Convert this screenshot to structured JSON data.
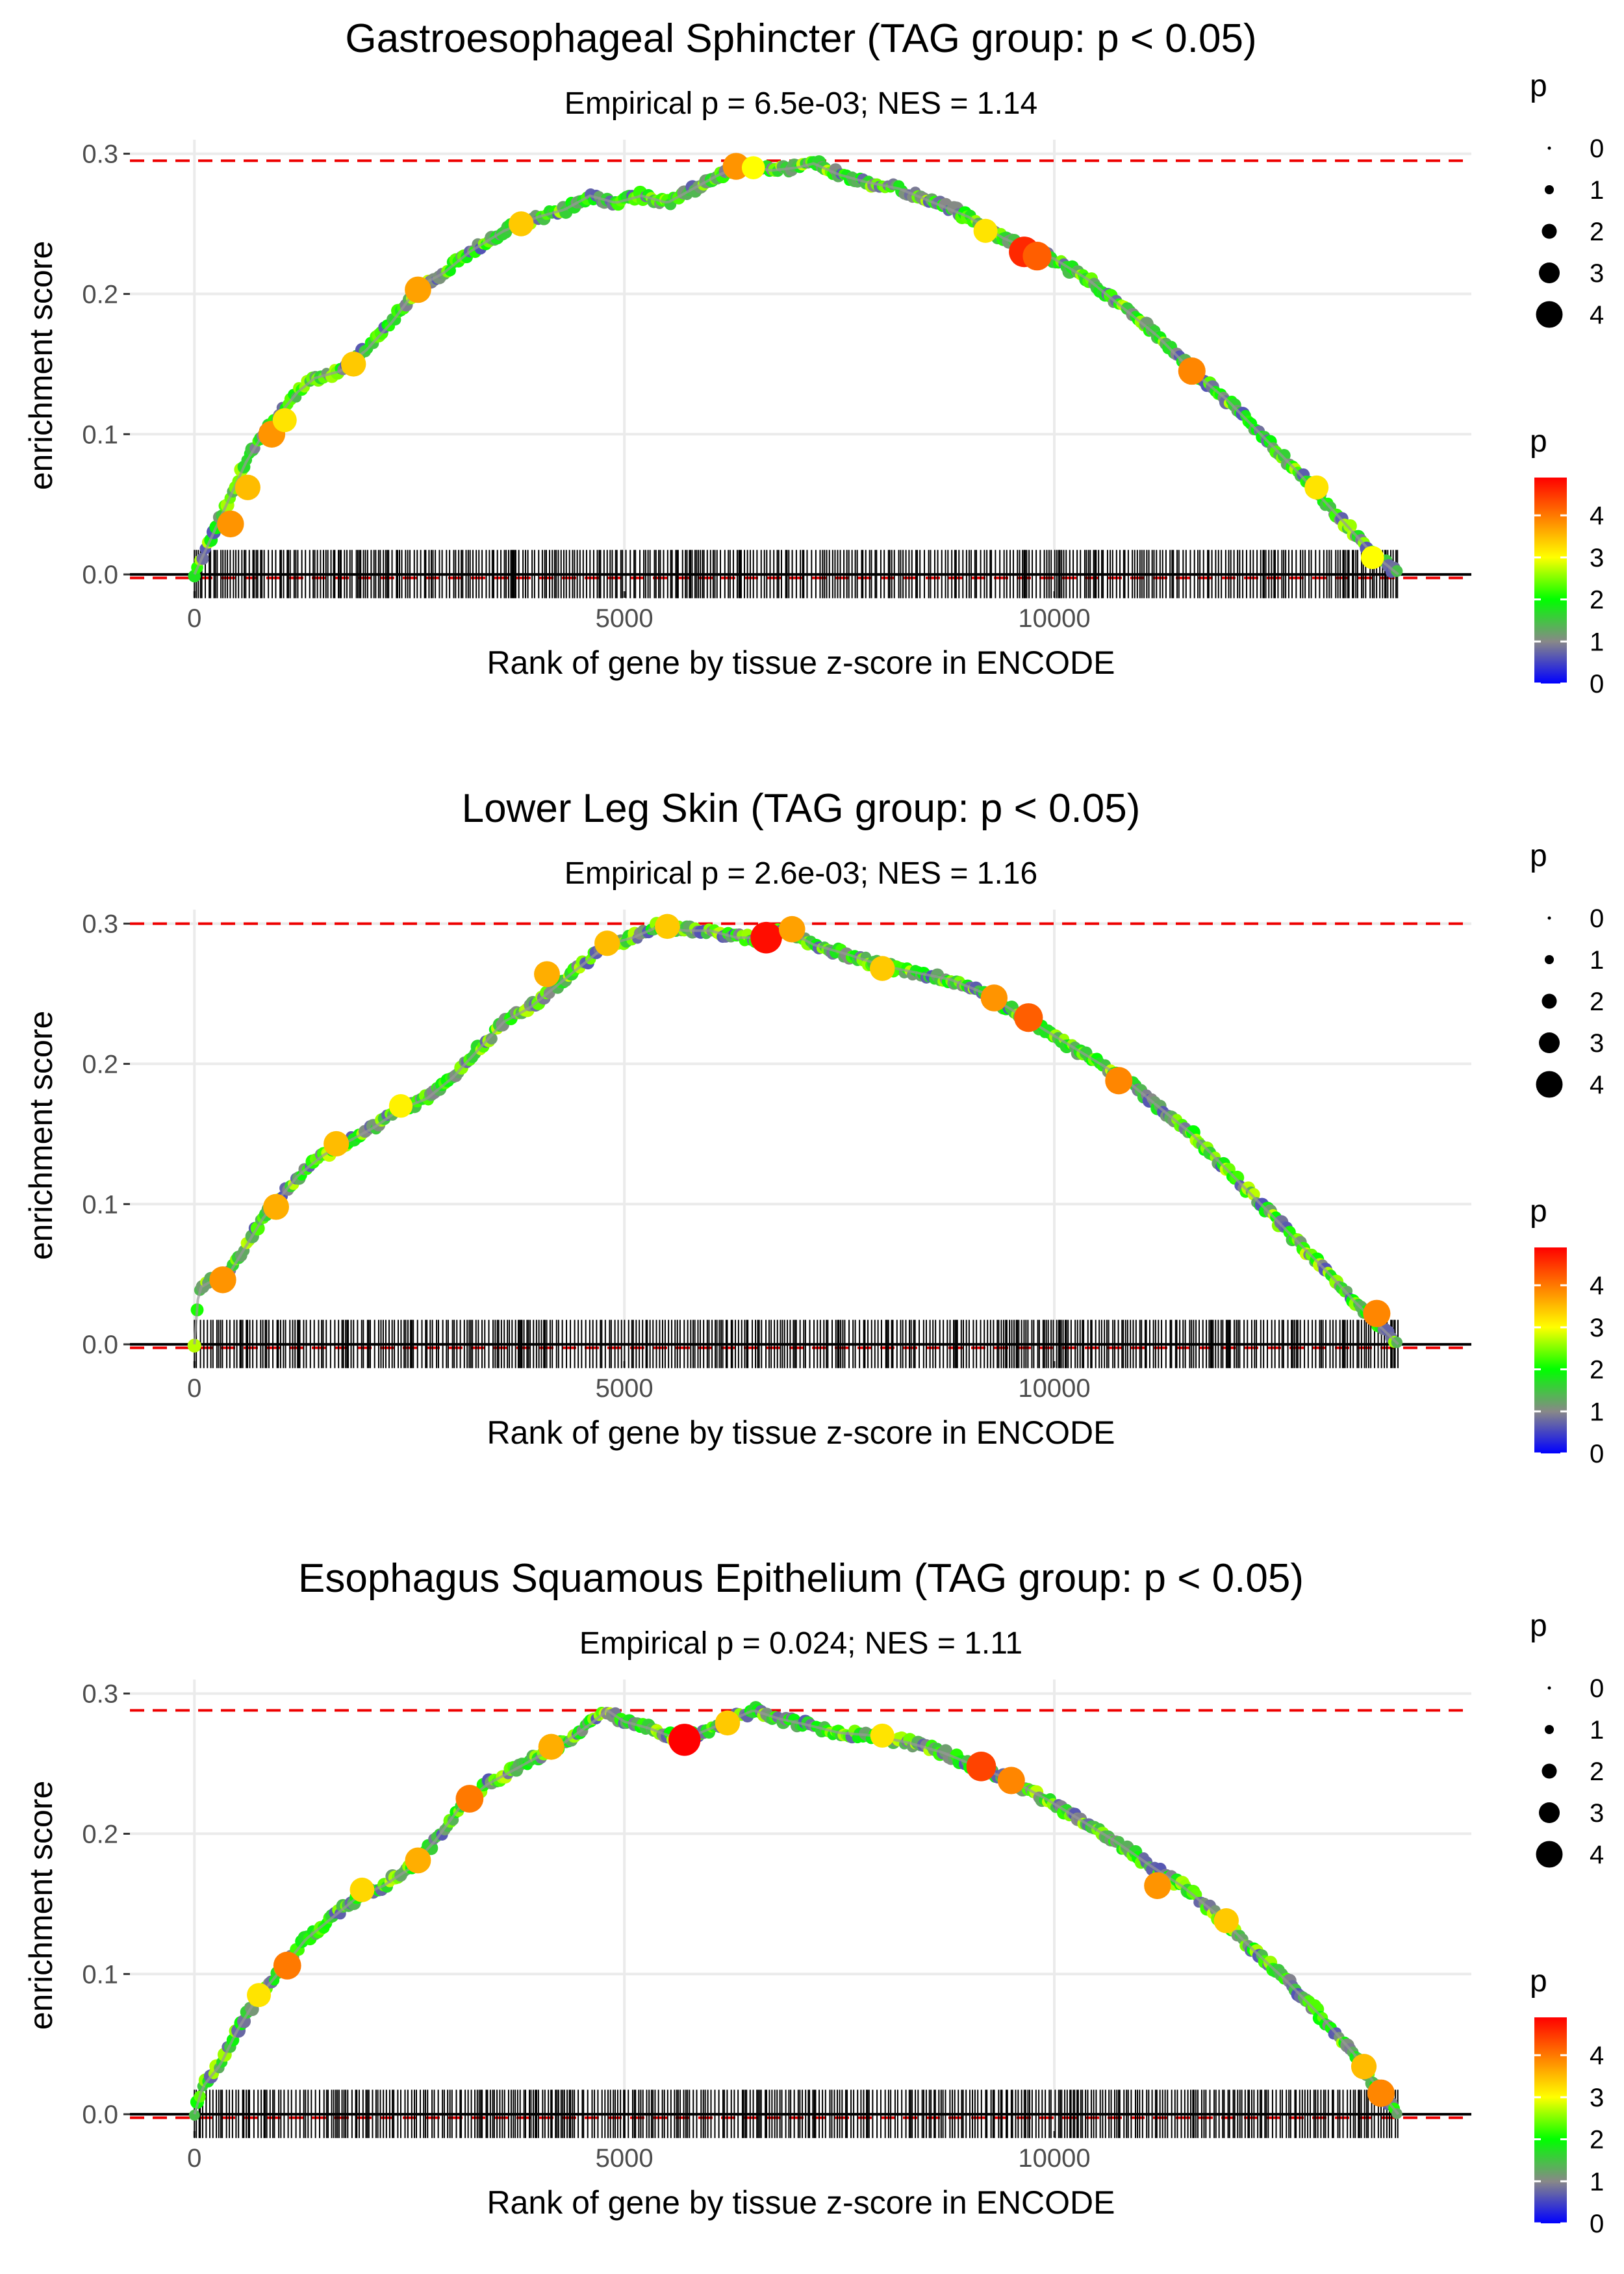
{
  "chart_data": [
    {
      "type": "line",
      "title": "Gastroesophageal Sphincter (TAG group: p < 0.05)",
      "subtitle": "Empirical p = 6.5e-03; NES = 1.14",
      "xlabel": "Rank of gene by tissue z-score in ENCODE",
      "ylabel": "enrichment score",
      "xlim": [
        -750,
        14850
      ],
      "ylim": [
        -0.012,
        0.31
      ],
      "x_ticks": [
        0,
        5000,
        10000
      ],
      "x_tick_labels": [
        "0",
        "5000",
        "10000"
      ],
      "y_ticks": [
        0,
        0.1,
        0.2,
        0.3
      ],
      "y_tick_labels": [
        "0.0",
        "0.1",
        "0.2",
        "0.3"
      ],
      "max_es": 0.295,
      "n_genes": 14000,
      "curve": {
        "x": [
          0,
          150,
          300,
          450,
          600,
          800,
          1000,
          1200,
          1400,
          1700,
          2000,
          2300,
          2600,
          2900,
          3200,
          3600,
          4000,
          4300,
          4600,
          4900,
          5200,
          5500,
          5800,
          6100,
          6400,
          6700,
          7000,
          7200,
          7500,
          7800,
          8200,
          8600,
          9000,
          9400,
          9700,
          10000,
          10400,
          10800,
          11200,
          11600,
          12000,
          12400,
          12800,
          13100,
          13400,
          13700,
          13900,
          14000
        ],
        "y": [
          0.0,
          0.02,
          0.04,
          0.06,
          0.08,
          0.1,
          0.115,
          0.13,
          0.14,
          0.145,
          0.16,
          0.18,
          0.205,
          0.215,
          0.23,
          0.245,
          0.255,
          0.26,
          0.27,
          0.265,
          0.27,
          0.265,
          0.275,
          0.285,
          0.292,
          0.288,
          0.29,
          0.293,
          0.285,
          0.28,
          0.275,
          0.265,
          0.255,
          0.24,
          0.232,
          0.225,
          0.21,
          0.19,
          0.17,
          0.145,
          0.125,
          0.1,
          0.075,
          0.055,
          0.035,
          0.015,
          0.005,
          0.0
        ]
      },
      "highlight_points": [
        {
          "x": 420,
          "y": 0.036,
          "p": 3.8
        },
        {
          "x": 620,
          "y": 0.062,
          "p": 3.5
        },
        {
          "x": 900,
          "y": 0.1,
          "p": 3.8
        },
        {
          "x": 1050,
          "y": 0.11,
          "p": 3.2
        },
        {
          "x": 1850,
          "y": 0.15,
          "p": 3.4
        },
        {
          "x": 2600,
          "y": 0.203,
          "p": 3.7
        },
        {
          "x": 3800,
          "y": 0.25,
          "p": 3.4
        },
        {
          "x": 6300,
          "y": 0.291,
          "p": 3.8
        },
        {
          "x": 6500,
          "y": 0.29,
          "p": 3.0
        },
        {
          "x": 9200,
          "y": 0.245,
          "p": 3.2
        },
        {
          "x": 9650,
          "y": 0.23,
          "p": 4.6
        },
        {
          "x": 9800,
          "y": 0.227,
          "p": 4.2
        },
        {
          "x": 11600,
          "y": 0.145,
          "p": 3.9
        },
        {
          "x": 13050,
          "y": 0.062,
          "p": 3.2
        },
        {
          "x": 13700,
          "y": 0.012,
          "p": 3.0
        }
      ],
      "tick_seed": 11
    },
    {
      "type": "line",
      "title": "Lower Leg Skin (TAG group: p < 0.05)",
      "subtitle": "Empirical p = 2.6e-03; NES = 1.16",
      "xlabel": "Rank of gene by tissue z-score in ENCODE",
      "ylabel": "enrichment score",
      "xlim": [
        -750,
        14850
      ],
      "ylim": [
        -0.012,
        0.31
      ],
      "x_ticks": [
        0,
        5000,
        10000
      ],
      "x_tick_labels": [
        "0",
        "5000",
        "10000"
      ],
      "y_ticks": [
        0,
        0.1,
        0.2,
        0.3
      ],
      "y_tick_labels": [
        "0.0",
        "0.1",
        "0.2",
        "0.3"
      ],
      "max_es": 0.3,
      "n_genes": 14000,
      "curve": {
        "x": [
          0,
          50,
          200,
          400,
          600,
          800,
          1000,
          1200,
          1500,
          1800,
          2100,
          2400,
          2700,
          3000,
          3300,
          3600,
          3900,
          4200,
          4500,
          4800,
          5100,
          5400,
          5700,
          6000,
          6300,
          6600,
          6900,
          7200,
          7600,
          8000,
          8400,
          8800,
          9200,
          9600,
          10000,
          10400,
          10800,
          11200,
          11600,
          12000,
          12400,
          12800,
          13200,
          13500,
          13800,
          14000
        ],
        "y": [
          0.0,
          0.04,
          0.045,
          0.05,
          0.07,
          0.09,
          0.105,
          0.12,
          0.135,
          0.145,
          0.155,
          0.168,
          0.175,
          0.19,
          0.21,
          0.23,
          0.24,
          0.255,
          0.27,
          0.285,
          0.29,
          0.298,
          0.295,
          0.295,
          0.29,
          0.29,
          0.295,
          0.285,
          0.278,
          0.27,
          0.265,
          0.26,
          0.25,
          0.235,
          0.22,
          0.205,
          0.19,
          0.17,
          0.15,
          0.125,
          0.1,
          0.075,
          0.05,
          0.03,
          0.012,
          0.0
        ]
      },
      "highlight_points": [
        {
          "x": 330,
          "y": 0.046,
          "p": 3.8
        },
        {
          "x": 950,
          "y": 0.098,
          "p": 3.6
        },
        {
          "x": 1650,
          "y": 0.143,
          "p": 3.5
        },
        {
          "x": 2400,
          "y": 0.17,
          "p": 3.1
        },
        {
          "x": 4100,
          "y": 0.264,
          "p": 3.6
        },
        {
          "x": 4800,
          "y": 0.286,
          "p": 3.5
        },
        {
          "x": 5500,
          "y": 0.298,
          "p": 3.4
        },
        {
          "x": 6650,
          "y": 0.29,
          "p": 4.8
        },
        {
          "x": 6950,
          "y": 0.296,
          "p": 3.7
        },
        {
          "x": 8000,
          "y": 0.268,
          "p": 3.4
        },
        {
          "x": 9300,
          "y": 0.247,
          "p": 3.8
        },
        {
          "x": 9700,
          "y": 0.233,
          "p": 4.2
        },
        {
          "x": 10750,
          "y": 0.188,
          "p": 3.9
        },
        {
          "x": 13750,
          "y": 0.022,
          "p": 3.9
        }
      ],
      "tick_seed": 29
    },
    {
      "type": "line",
      "title": "Esophagus Squamous Epithelium (TAG group: p < 0.05)",
      "subtitle": "Empirical p = 0.024; NES = 1.11",
      "xlabel": "Rank of gene by tissue z-score in ENCODE",
      "ylabel": "enrichment score",
      "xlim": [
        -750,
        14850
      ],
      "ylim": [
        -0.012,
        0.31
      ],
      "x_ticks": [
        0,
        5000,
        10000
      ],
      "x_tick_labels": [
        "0",
        "5000",
        "10000"
      ],
      "y_ticks": [
        0,
        0.1,
        0.2,
        0.3
      ],
      "y_tick_labels": [
        "0.0",
        "0.1",
        "0.2",
        "0.3"
      ],
      "max_es": 0.288,
      "n_genes": 14000,
      "curve": {
        "x": [
          0,
          100,
          300,
          500,
          700,
          900,
          1100,
          1300,
          1600,
          1900,
          2200,
          2500,
          2800,
          3100,
          3400,
          3700,
          4000,
          4300,
          4600,
          4800,
          5000,
          5300,
          5600,
          5800,
          6000,
          6200,
          6500,
          6800,
          7100,
          7500,
          7900,
          8300,
          8700,
          9100,
          9500,
          9900,
          10300,
          10700,
          11100,
          11500,
          11900,
          12300,
          12700,
          13100,
          13500,
          13800,
          14000
        ],
        "y": [
          0.0,
          0.02,
          0.035,
          0.06,
          0.08,
          0.095,
          0.11,
          0.125,
          0.14,
          0.155,
          0.163,
          0.175,
          0.195,
          0.22,
          0.235,
          0.245,
          0.255,
          0.265,
          0.278,
          0.288,
          0.28,
          0.275,
          0.268,
          0.27,
          0.275,
          0.28,
          0.288,
          0.282,
          0.278,
          0.272,
          0.27,
          0.265,
          0.258,
          0.248,
          0.238,
          0.225,
          0.21,
          0.195,
          0.178,
          0.162,
          0.142,
          0.118,
          0.095,
          0.07,
          0.042,
          0.015,
          0.0
        ]
      },
      "highlight_points": [
        {
          "x": 750,
          "y": 0.085,
          "p": 3.2
        },
        {
          "x": 1080,
          "y": 0.106,
          "p": 4.0
        },
        {
          "x": 1950,
          "y": 0.16,
          "p": 3.3
        },
        {
          "x": 2600,
          "y": 0.181,
          "p": 3.6
        },
        {
          "x": 3200,
          "y": 0.225,
          "p": 4.0
        },
        {
          "x": 4150,
          "y": 0.262,
          "p": 3.6
        },
        {
          "x": 5700,
          "y": 0.267,
          "p": 4.9
        },
        {
          "x": 6200,
          "y": 0.279,
          "p": 3.4
        },
        {
          "x": 8000,
          "y": 0.27,
          "p": 3.2
        },
        {
          "x": 9150,
          "y": 0.248,
          "p": 4.4
        },
        {
          "x": 9500,
          "y": 0.238,
          "p": 3.9
        },
        {
          "x": 11200,
          "y": 0.163,
          "p": 3.8
        },
        {
          "x": 12000,
          "y": 0.138,
          "p": 3.4
        },
        {
          "x": 13600,
          "y": 0.034,
          "p": 3.5
        },
        {
          "x": 13800,
          "y": 0.015,
          "p": 3.9
        }
      ],
      "tick_seed": 47
    }
  ],
  "legends": [
    {
      "size_title": "p",
      "size_labels": [
        "0",
        "1",
        "2",
        "3",
        "4"
      ],
      "color_title": "p",
      "color_labels": [
        "0",
        "1",
        "2",
        "3",
        "4"
      ],
      "color_max": 4.9
    },
    {
      "size_title": "p",
      "size_labels": [
        "0",
        "1",
        "2",
        "3",
        "4"
      ],
      "color_title": "p",
      "color_labels": [
        "0",
        "1",
        "2",
        "3",
        "4"
      ],
      "color_max": 4.9
    },
    {
      "size_title": "p",
      "size_labels": [
        "0",
        "1",
        "2",
        "3",
        "4"
      ],
      "color_title": "p",
      "color_labels": [
        "0",
        "1",
        "2",
        "3",
        "4"
      ],
      "color_max": 4.9
    }
  ],
  "colors": {
    "colorscale": [
      "#0000ff",
      "#888888",
      "#00ff00",
      "#ffff00",
      "#ff0000"
    ],
    "colorscale_stops": [
      0,
      1,
      2,
      3,
      4.9
    ],
    "max_line": "#ee0000",
    "gridline": "#ebebeb",
    "axis_text": "#4d4d4d"
  }
}
